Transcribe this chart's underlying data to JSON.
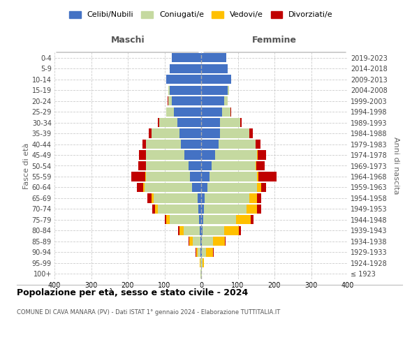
{
  "age_groups": [
    "100+",
    "95-99",
    "90-94",
    "85-89",
    "80-84",
    "75-79",
    "70-74",
    "65-69",
    "60-64",
    "55-59",
    "50-54",
    "45-49",
    "40-44",
    "35-39",
    "30-34",
    "25-29",
    "20-24",
    "15-19",
    "10-14",
    "5-9",
    "0-4"
  ],
  "birth_years": [
    "≤ 1923",
    "1924-1928",
    "1929-1933",
    "1934-1938",
    "1939-1943",
    "1944-1948",
    "1949-1953",
    "1954-1958",
    "1959-1963",
    "1964-1968",
    "1969-1973",
    "1974-1978",
    "1979-1983",
    "1984-1988",
    "1989-1993",
    "1994-1998",
    "1999-2003",
    "2004-2008",
    "2009-2013",
    "2014-2018",
    "2019-2023"
  ],
  "males_celibi": [
    0,
    0,
    1,
    2,
    3,
    5,
    8,
    10,
    25,
    30,
    35,
    45,
    55,
    60,
    65,
    75,
    80,
    85,
    95,
    85,
    80
  ],
  "males_coniugati": [
    1,
    2,
    8,
    20,
    45,
    80,
    110,
    120,
    130,
    120,
    115,
    105,
    95,
    75,
    50,
    20,
    10,
    5,
    0,
    0,
    0
  ],
  "males_vedovi": [
    0,
    1,
    5,
    10,
    12,
    10,
    8,
    5,
    3,
    2,
    1,
    1,
    0,
    0,
    0,
    0,
    0,
    0,
    0,
    0,
    0
  ],
  "males_divorziati": [
    0,
    0,
    1,
    2,
    3,
    5,
    8,
    12,
    18,
    38,
    20,
    18,
    10,
    8,
    3,
    1,
    2,
    0,
    0,
    0,
    0
  ],
  "females_nubili": [
    0,
    0,
    1,
    2,
    3,
    5,
    8,
    10,
    18,
    22,
    28,
    38,
    48,
    52,
    52,
    58,
    62,
    72,
    82,
    72,
    68
  ],
  "females_coniugate": [
    1,
    3,
    12,
    30,
    60,
    90,
    115,
    122,
    135,
    130,
    120,
    115,
    100,
    80,
    55,
    22,
    10,
    4,
    0,
    0,
    0
  ],
  "females_vedove": [
    1,
    5,
    20,
    32,
    40,
    40,
    30,
    20,
    10,
    5,
    3,
    2,
    1,
    0,
    0,
    0,
    0,
    0,
    0,
    0,
    0
  ],
  "females_divorziate": [
    0,
    0,
    1,
    3,
    5,
    8,
    10,
    12,
    15,
    48,
    22,
    22,
    12,
    8,
    3,
    2,
    1,
    0,
    0,
    0,
    0
  ],
  "color_celibi": "#4472c4",
  "color_coniugati": "#c5d9a0",
  "color_vedovi": "#ffc000",
  "color_divorziati": "#c00000",
  "legend_labels": [
    "Celibi/Nubili",
    "Coniugati/e",
    "Vedovi/e",
    "Divorziati/e"
  ],
  "xlim": 400,
  "title": "Popolazione per età, sesso e stato civile - 2024",
  "subtitle": "COMUNE DI CAVA MANARA (PV) - Dati ISTAT 1° gennaio 2024 - Elaborazione TUTTITALIA.IT",
  "ylabel_left": "Fasce di età",
  "ylabel_right": "Anni di nascita",
  "label_maschi": "Maschi",
  "label_femmine": "Femmine"
}
